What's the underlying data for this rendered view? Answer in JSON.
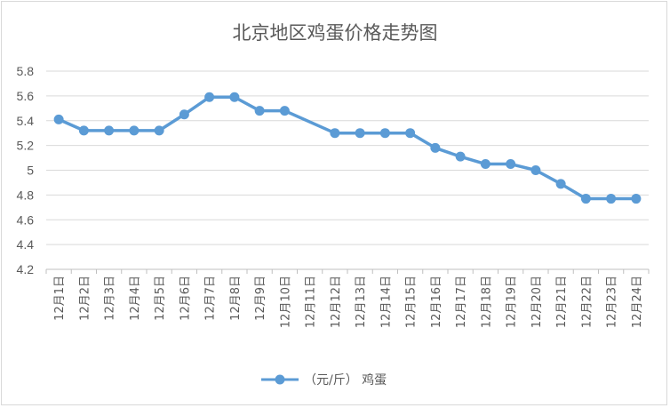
{
  "chart_data": {
    "type": "line",
    "title": "北京地区鸡蛋价格走势图",
    "xlabel": "",
    "ylabel": "",
    "ylim": [
      4.2,
      5.8
    ],
    "yticks": [
      "4.2",
      "4.4",
      "4.6",
      "4.8",
      "5",
      "5.2",
      "5.4",
      "5.6",
      "5.8"
    ],
    "grid": true,
    "legend_position": "bottom",
    "categories": [
      "12月1日",
      "12月2日",
      "12月3日",
      "12月4日",
      "12月5日",
      "12月6日",
      "12月7日",
      "12月8日",
      "12月9日",
      "12月10日",
      "12月11日",
      "12月12日",
      "12月13日",
      "12月14日",
      "12月15日",
      "12月16日",
      "12月17日",
      "12月18日",
      "12月19日",
      "12月20日",
      "12月21日",
      "12月22日",
      "12月23日",
      "12月24日"
    ],
    "series": [
      {
        "name": "（元/斤） 鸡蛋",
        "color": "#5b9bd5",
        "values": [
          5.41,
          5.32,
          5.32,
          5.32,
          5.32,
          5.45,
          5.59,
          5.59,
          5.48,
          5.48,
          null,
          5.3,
          5.3,
          5.3,
          5.3,
          5.18,
          5.11,
          5.05,
          5.05,
          5.0,
          4.89,
          4.77,
          4.77,
          4.77
        ]
      }
    ]
  }
}
